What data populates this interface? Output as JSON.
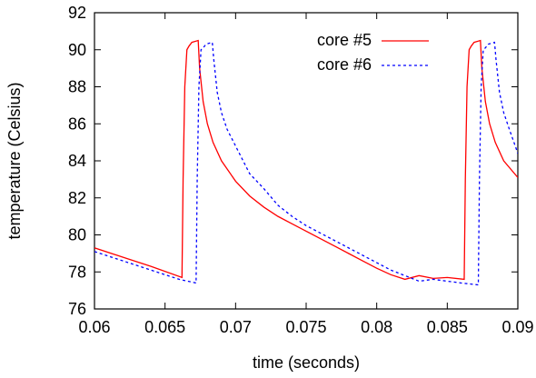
{
  "chart_data": {
    "type": "line",
    "title": "",
    "xlabel": "time (seconds)",
    "ylabel": "temperature (Celsius)",
    "xlim": [
      0.06,
      0.09
    ],
    "ylim": [
      76,
      92
    ],
    "xticks": [
      "0.06",
      "0.065",
      "0.07",
      "0.075",
      "0.08",
      "0.085",
      "0.09"
    ],
    "yticks": [
      "76",
      "78",
      "80",
      "82",
      "84",
      "86",
      "88",
      "90",
      "92"
    ],
    "grid": false,
    "legend_position": "top-right",
    "series": [
      {
        "name": "core #5",
        "color": "#ff0000",
        "dash": "solid",
        "x": [
          0.06,
          0.062,
          0.064,
          0.0662,
          0.06628,
          0.0664,
          0.06655,
          0.0667,
          0.0669,
          0.06735,
          0.06745,
          0.0677,
          0.068,
          0.0684,
          0.069,
          0.07,
          0.071,
          0.072,
          0.073,
          0.074,
          0.075,
          0.076,
          0.077,
          0.078,
          0.079,
          0.08,
          0.081,
          0.082,
          0.083,
          0.084,
          0.085,
          0.0862,
          0.08628,
          0.0864,
          0.08655,
          0.0867,
          0.0869,
          0.08735,
          0.08745,
          0.0877,
          0.088,
          0.0884,
          0.089,
          0.09
        ],
        "y": [
          79.3,
          78.8,
          78.3,
          77.7,
          83.0,
          88.0,
          90.0,
          90.2,
          90.4,
          90.5,
          89.0,
          87.2,
          86.0,
          85.0,
          84.0,
          82.9,
          82.1,
          81.5,
          81.0,
          80.6,
          80.2,
          79.8,
          79.4,
          79.0,
          78.6,
          78.2,
          77.85,
          77.6,
          77.8,
          77.65,
          77.7,
          77.6,
          83.0,
          88.0,
          90.0,
          90.2,
          90.4,
          90.5,
          89.0,
          87.2,
          86.0,
          85.0,
          84.0,
          83.1
        ]
      },
      {
        "name": "core #6",
        "color": "#0000ff",
        "dash": "dashed",
        "x": [
          0.06,
          0.062,
          0.064,
          0.066,
          0.0672,
          0.06728,
          0.0674,
          0.06755,
          0.0677,
          0.0679,
          0.06835,
          0.06845,
          0.0687,
          0.069,
          0.0694,
          0.07,
          0.071,
          0.072,
          0.073,
          0.074,
          0.075,
          0.076,
          0.077,
          0.078,
          0.079,
          0.08,
          0.081,
          0.082,
          0.083,
          0.084,
          0.085,
          0.086,
          0.0872,
          0.08728,
          0.0874,
          0.08755,
          0.0877,
          0.0879,
          0.08835,
          0.08845,
          0.0887,
          0.089,
          0.0894,
          0.09
        ],
        "y": [
          79.1,
          78.6,
          78.1,
          77.6,
          77.4,
          83.0,
          88.0,
          90.0,
          90.1,
          90.3,
          90.4,
          89.5,
          87.7,
          86.6,
          85.7,
          84.8,
          83.3,
          82.5,
          81.6,
          81.0,
          80.5,
          80.1,
          79.7,
          79.3,
          78.9,
          78.5,
          78.1,
          77.8,
          77.5,
          77.6,
          77.5,
          77.4,
          77.3,
          83.0,
          88.0,
          90.0,
          90.1,
          90.3,
          90.4,
          89.5,
          87.7,
          86.6,
          85.7,
          84.4
        ]
      }
    ]
  }
}
